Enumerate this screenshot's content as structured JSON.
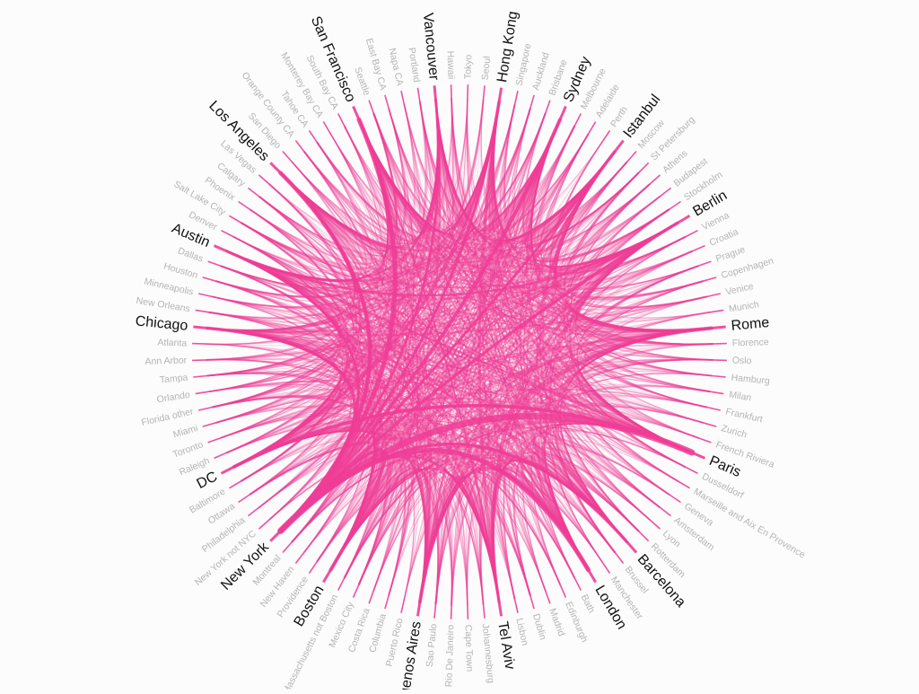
{
  "diagram": {
    "type": "chord",
    "link_color": "#ee3d96",
    "major_label_color": "#111111",
    "minor_label_color": "#b4b4b4",
    "nodes": [
      {
        "name": "Tokyo",
        "major": false
      },
      {
        "name": "Seoul",
        "major": false
      },
      {
        "name": "Hong Kong",
        "major": true
      },
      {
        "name": "Singapore",
        "major": false
      },
      {
        "name": "Auckland",
        "major": false
      },
      {
        "name": "Brisbane",
        "major": false
      },
      {
        "name": "Sydney",
        "major": true
      },
      {
        "name": "Melbourne",
        "major": false
      },
      {
        "name": "Adelaide",
        "major": false
      },
      {
        "name": "Perth",
        "major": false
      },
      {
        "name": "Istanbul",
        "major": true
      },
      {
        "name": "Moscow",
        "major": false
      },
      {
        "name": "St Petersburg",
        "major": false
      },
      {
        "name": "Athens",
        "major": false
      },
      {
        "name": "Budapest",
        "major": false
      },
      {
        "name": "Stockholm",
        "major": false
      },
      {
        "name": "Berlin",
        "major": true
      },
      {
        "name": "Vienna",
        "major": false
      },
      {
        "name": "Croatia",
        "major": false
      },
      {
        "name": "Prague",
        "major": false
      },
      {
        "name": "Copenhagen",
        "major": false
      },
      {
        "name": "Venice",
        "major": false
      },
      {
        "name": "Munich",
        "major": false
      },
      {
        "name": "Rome",
        "major": true
      },
      {
        "name": "Florence",
        "major": false
      },
      {
        "name": "Oslo",
        "major": false
      },
      {
        "name": "Hamburg",
        "major": false
      },
      {
        "name": "Milan",
        "major": false
      },
      {
        "name": "Frankfurt",
        "major": false
      },
      {
        "name": "Zurich",
        "major": false
      },
      {
        "name": "French Riviera",
        "major": false
      },
      {
        "name": "Paris",
        "major": true
      },
      {
        "name": "Dusseldorf",
        "major": false
      },
      {
        "name": "Marseille and Aix En Provence",
        "major": false
      },
      {
        "name": "Geneva",
        "major": false
      },
      {
        "name": "Amsterdam",
        "major": false
      },
      {
        "name": "Lyon",
        "major": false
      },
      {
        "name": "Rotterdam",
        "major": false
      },
      {
        "name": "Barcelona",
        "major": true
      },
      {
        "name": "Brussel",
        "major": false
      },
      {
        "name": "Manchester",
        "major": false
      },
      {
        "name": "London",
        "major": true
      },
      {
        "name": "Bath",
        "major": false
      },
      {
        "name": "Edinburgh",
        "major": false
      },
      {
        "name": "Madrid",
        "major": false
      },
      {
        "name": "Dublin",
        "major": false
      },
      {
        "name": "Lisbon",
        "major": false
      },
      {
        "name": "Tel Aviv",
        "major": true
      },
      {
        "name": "Johannesburg",
        "major": false
      },
      {
        "name": "Cape Town",
        "major": false
      },
      {
        "name": "Rio De Janeiro",
        "major": false
      },
      {
        "name": "Sao Paulo",
        "major": false
      },
      {
        "name": "Buenos Aires",
        "major": true
      },
      {
        "name": "Puerto Rico",
        "major": false
      },
      {
        "name": "Columbia",
        "major": false
      },
      {
        "name": "Costa Rica",
        "major": false
      },
      {
        "name": "Mexico City",
        "major": false
      },
      {
        "name": "Massachusetts not Boston",
        "major": false
      },
      {
        "name": "Boston",
        "major": true
      },
      {
        "name": "Providence",
        "major": false
      },
      {
        "name": "New Haven",
        "major": false
      },
      {
        "name": "Montreal",
        "major": false
      },
      {
        "name": "New York",
        "major": true
      },
      {
        "name": "New York not NYC",
        "major": false
      },
      {
        "name": "Philadelphia",
        "major": false
      },
      {
        "name": "Ottawa",
        "major": false
      },
      {
        "name": "Baltimore",
        "major": false
      },
      {
        "name": "DC",
        "major": true
      },
      {
        "name": "Raleigh",
        "major": false
      },
      {
        "name": "Toronto",
        "major": false
      },
      {
        "name": "Miami",
        "major": false
      },
      {
        "name": "Florida other",
        "major": false
      },
      {
        "name": "Orlando",
        "major": false
      },
      {
        "name": "Tampa",
        "major": false
      },
      {
        "name": "Ann Arbor",
        "major": false
      },
      {
        "name": "Atlanta",
        "major": false
      },
      {
        "name": "Chicago",
        "major": true
      },
      {
        "name": "New Orleans",
        "major": false
      },
      {
        "name": "Minneapolis",
        "major": false
      },
      {
        "name": "Houston",
        "major": false
      },
      {
        "name": "Dallas",
        "major": false
      },
      {
        "name": "Austin",
        "major": true
      },
      {
        "name": "Denver",
        "major": false
      },
      {
        "name": "Salt Lake City",
        "major": false
      },
      {
        "name": "Phoenix",
        "major": false
      },
      {
        "name": "Calgary",
        "major": false
      },
      {
        "name": "Las Vegas",
        "major": false
      },
      {
        "name": "Los Angeles",
        "major": true
      },
      {
        "name": "San Diego",
        "major": false
      },
      {
        "name": "Orange County CA",
        "major": false
      },
      {
        "name": "Tahoe CA",
        "major": false
      },
      {
        "name": "Monterey Bay CA",
        "major": false
      },
      {
        "name": "South Bay CA",
        "major": false
      },
      {
        "name": "San Francisco",
        "major": true
      },
      {
        "name": "Seattle",
        "major": false
      },
      {
        "name": "East Bay CA",
        "major": false
      },
      {
        "name": "Napa CA",
        "major": false
      },
      {
        "name": "Portland",
        "major": false
      },
      {
        "name": "Vancouver",
        "major": true
      },
      {
        "name": "Hawaii",
        "major": false
      }
    ]
  }
}
